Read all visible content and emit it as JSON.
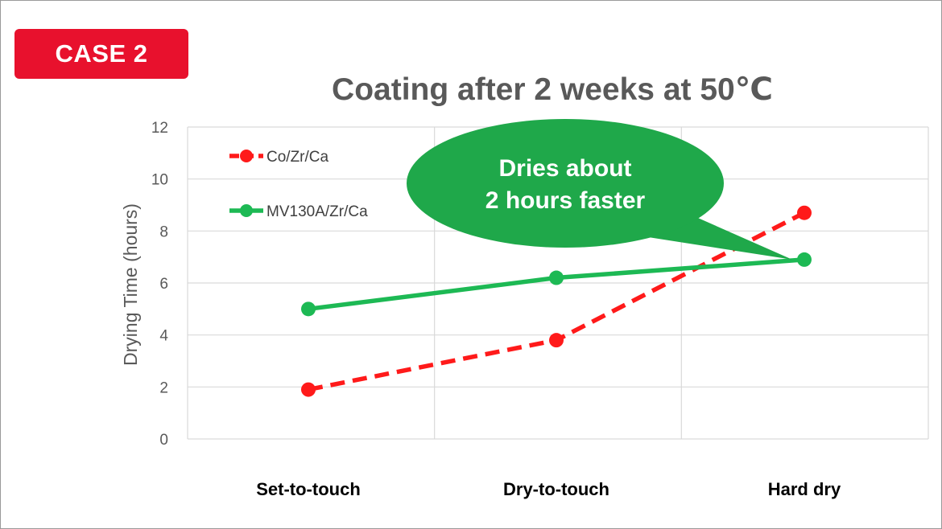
{
  "badge": {
    "label": "CASE 2"
  },
  "chart_data": {
    "type": "line",
    "title": "Coating after 2 weeks at 50℃",
    "ylabel": "Drying Time (hours)",
    "xlabel": "",
    "categories": [
      "Set-to-touch",
      "Dry-to-touch",
      "Hard dry"
    ],
    "ylim": [
      0,
      12
    ],
    "yticks": [
      0,
      2,
      4,
      6,
      8,
      10,
      12
    ],
    "grid": true,
    "legend_position": "top-left",
    "series": [
      {
        "name": "Co/Zr/Ca",
        "values": [
          1.9,
          3.8,
          8.7
        ],
        "color": "#ff1a1a",
        "style": "dashed"
      },
      {
        "name": "MV130A/Zr/Ca",
        "values": [
          5.0,
          6.2,
          6.9
        ],
        "color": "#1db954",
        "style": "solid"
      }
    ],
    "annotations": [
      {
        "text_lines": [
          "Dries about",
          "2 hours faster"
        ],
        "color": "#1fa84a",
        "points_to": "Hard dry"
      }
    ]
  }
}
